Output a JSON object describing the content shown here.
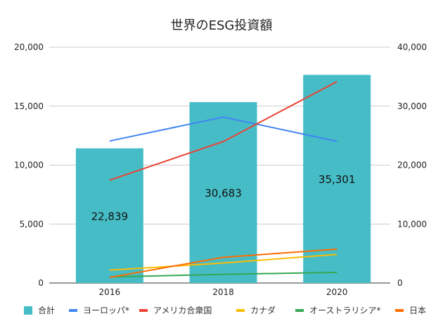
{
  "chart_data": {
    "type": "bar+line",
    "title": "世界のESG投資額",
    "categories": [
      "2016",
      "2018",
      "2020"
    ],
    "left_axis": {
      "range": [
        0,
        20000
      ],
      "ticks": [
        "0",
        "5,000",
        "10,000",
        "15,000",
        "20,000"
      ],
      "gridlines": true
    },
    "right_axis": {
      "range": [
        0,
        40000
      ],
      "ticks": [
        "0",
        "10,000",
        "20,000",
        "30,000",
        "40,000"
      ]
    },
    "bar_series": {
      "name": "合計",
      "axis": "right",
      "color": "#46bdc6",
      "values": [
        22839,
        30683,
        35301
      ],
      "data_labels": [
        "22,839",
        "30,683",
        "35,301"
      ]
    },
    "line_series": [
      {
        "name": "ヨーロッパ*",
        "axis": "left",
        "color": "#4285f4",
        "values": [
          12040,
          14075,
          12017
        ]
      },
      {
        "name": "アメリカ合衆国",
        "axis": "left",
        "color": "#ea4335",
        "values": [
          8723,
          11995,
          17081
        ]
      },
      {
        "name": "カナダ",
        "axis": "left",
        "color": "#fbbc04",
        "values": [
          1086,
          1699,
          2423
        ]
      },
      {
        "name": "オーストラリシア*",
        "axis": "left",
        "color": "#34a853",
        "values": [
          516,
          734,
          906
        ]
      },
      {
        "name": "日本",
        "axis": "left",
        "color": "#ff6d01",
        "values": [
          474,
          2180,
          2874
        ]
      }
    ],
    "legend": "bottom"
  }
}
